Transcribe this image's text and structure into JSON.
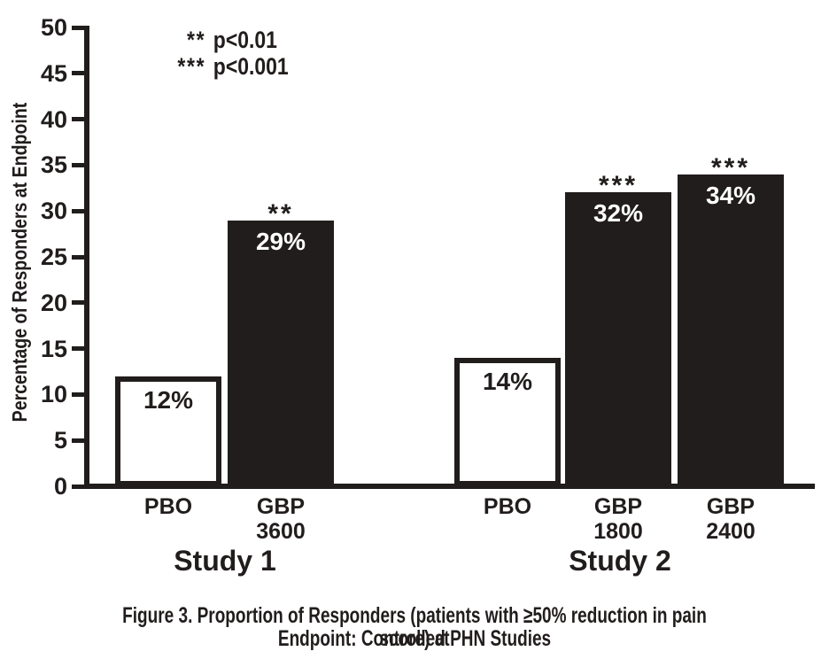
{
  "figure": {
    "caption_line1": "Figure 3. Proportion of Responders (patients with ≥50% reduction in pain score) at",
    "caption_line2": "Endpoint: Controlled PHN Studies"
  },
  "chart_data": {
    "type": "bar",
    "title": "",
    "xlabel": "",
    "ylabel": "Percentage of Responders at Endpoint",
    "ylim": [
      0,
      50
    ],
    "ytick_step": 5,
    "yticks": [
      0,
      5,
      10,
      15,
      20,
      25,
      30,
      35,
      40,
      45,
      50
    ],
    "grid": false,
    "legend_position": "top-left-inside",
    "legend_notes": [
      {
        "symbol": "**",
        "text": "p<0.01"
      },
      {
        "symbol": "***",
        "text": "p<0.001"
      }
    ],
    "groups": [
      {
        "name": "Study 1",
        "bars": [
          {
            "label_lines": [
              "PBO"
            ],
            "value": 12,
            "value_label": "12%",
            "fill": "white",
            "significance": ""
          },
          {
            "label_lines": [
              "GBP",
              "3600"
            ],
            "value": 29,
            "value_label": "29%",
            "fill": "black",
            "significance": "**"
          }
        ]
      },
      {
        "name": "Study 2",
        "bars": [
          {
            "label_lines": [
              "PBO"
            ],
            "value": 14,
            "value_label": "14%",
            "fill": "white",
            "significance": ""
          },
          {
            "label_lines": [
              "GBP",
              "1800"
            ],
            "value": 32,
            "value_label": "32%",
            "fill": "black",
            "significance": "***"
          },
          {
            "label_lines": [
              "GBP",
              "2400"
            ],
            "value": 34,
            "value_label": "34%",
            "fill": "black",
            "significance": "***"
          }
        ]
      }
    ],
    "colors": {
      "ink": "#211d1c",
      "bar_black": "#211d1c",
      "bar_white": "#ffffff",
      "background": "#ffffff"
    }
  }
}
